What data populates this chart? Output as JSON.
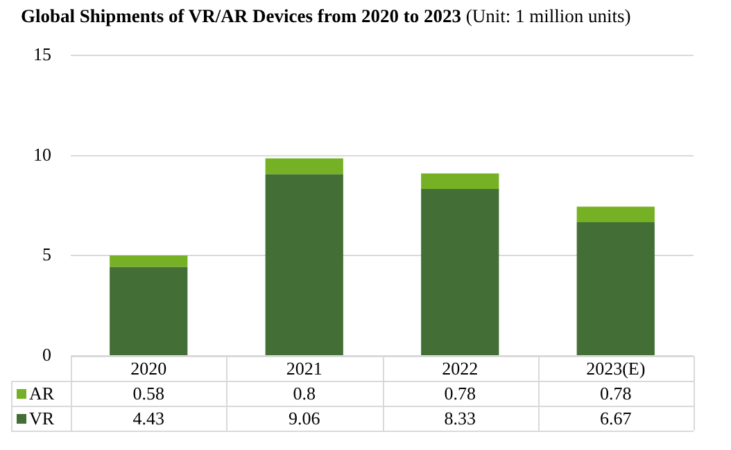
{
  "chart_data": {
    "type": "bar",
    "title": "Global Shipments of VR/AR Devices from 2020 to 2023",
    "subtitle": "(Unit: 1 million units)",
    "categories": [
      "2020",
      "2021",
      "2022",
      "2023(E)"
    ],
    "series": [
      {
        "name": "VR",
        "color": "#436e35",
        "values": [
          4.43,
          9.06,
          8.33,
          6.67
        ]
      },
      {
        "name": "AR",
        "color": "#76b025",
        "values": [
          0.58,
          0.8,
          0.78,
          0.78
        ]
      }
    ],
    "stacked": true,
    "ylim": [
      0,
      15
    ],
    "yticks": [
      0,
      5,
      10,
      15
    ],
    "grid": "y",
    "legend": "bottom left",
    "data_labels": true
  }
}
